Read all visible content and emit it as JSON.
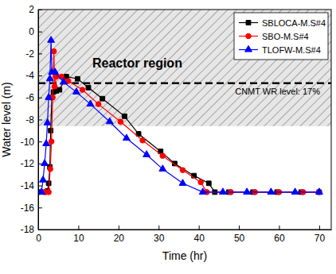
{
  "chart_data": {
    "type": "line",
    "x_label": "Time (hr)",
    "y_label": "Water level (m)",
    "xlim": [
      0,
      73
    ],
    "xticks": [
      0,
      10,
      20,
      30,
      40,
      50,
      60,
      70
    ],
    "ylim": [
      -18,
      2
    ],
    "yticks": [
      -18,
      -16,
      -14,
      -12,
      -10,
      -8,
      -6,
      -4,
      -2,
      0,
      2
    ],
    "legend": "upper right",
    "regions": [
      {
        "label": "Reactor region",
        "y0": -8.6,
        "y1": 2
      }
    ],
    "reference_lines": [
      {
        "label": "CNMT WR level: 17%",
        "value": -4.7
      }
    ],
    "series": [
      {
        "name": "SBLOCA-M.S#4",
        "color": "#000000",
        "marker": "square",
        "line_style": "solid",
        "x": [
          0,
          1.5,
          2.3,
          2.6,
          2.9,
          3.1,
          3.4,
          3.8,
          4.5,
          5.3,
          7,
          9.8,
          12.5,
          16,
          21.5,
          25,
          30.5,
          34,
          38.8,
          42.5,
          44,
          47.5,
          53.5,
          59.5,
          65.5,
          70
        ],
        "values": [
          -14.6,
          -14.6,
          -14.5,
          -13.8,
          -12.3,
          -9,
          -6,
          -5.5,
          -5.4,
          -5.3,
          -4.1,
          -4.3,
          -5.1,
          -6.1,
          -7.7,
          -9.3,
          -10.9,
          -12,
          -13.1,
          -13.8,
          -14.6,
          -14.6,
          -14.6,
          -14.6,
          -14.6,
          -14.6
        ]
      },
      {
        "name": "SBO-M.S#4",
        "color": "#ff0000",
        "marker": "circle",
        "line_style": "solid",
        "x": [
          0,
          1.8,
          2.6,
          3,
          3.3,
          3.6,
          3.9,
          4.1,
          4.5,
          5.8,
          7.5,
          11,
          15,
          20.5,
          26,
          31,
          36,
          40.5,
          42,
          48,
          54,
          60,
          66,
          70
        ],
        "values": [
          -14.6,
          -14.6,
          -14.6,
          -12.5,
          -10,
          -6,
          -1.8,
          -5,
          -4.1,
          -4.1,
          -4.5,
          -5.3,
          -6.6,
          -8.2,
          -9.9,
          -11.3,
          -12.6,
          -13.7,
          -14.6,
          -14.6,
          -14.6,
          -14.6,
          -14.6,
          -14.6
        ]
      },
      {
        "name": "TLOFW-M.S#4",
        "color": "#0000ff",
        "marker": "triangle",
        "line_style": "solid",
        "x": [
          0,
          0.8,
          1.2,
          1.6,
          2,
          2.3,
          2.6,
          2.9,
          3.2,
          3.4,
          4.2,
          6.3,
          9.5,
          13,
          17.8,
          22,
          27,
          31,
          36,
          41,
          46,
          52,
          58,
          64,
          70
        ],
        "values": [
          -14.6,
          -14.6,
          -13.5,
          -12,
          -10.2,
          -8.3,
          -6,
          -4.3,
          -0.8,
          -3.7,
          -3.7,
          -4.6,
          -5.5,
          -6.6,
          -8.2,
          -9.7,
          -11.2,
          -12.5,
          -13.8,
          -14.6,
          -14.6,
          -14.6,
          -14.6,
          -14.6,
          -14.6
        ]
      }
    ]
  }
}
